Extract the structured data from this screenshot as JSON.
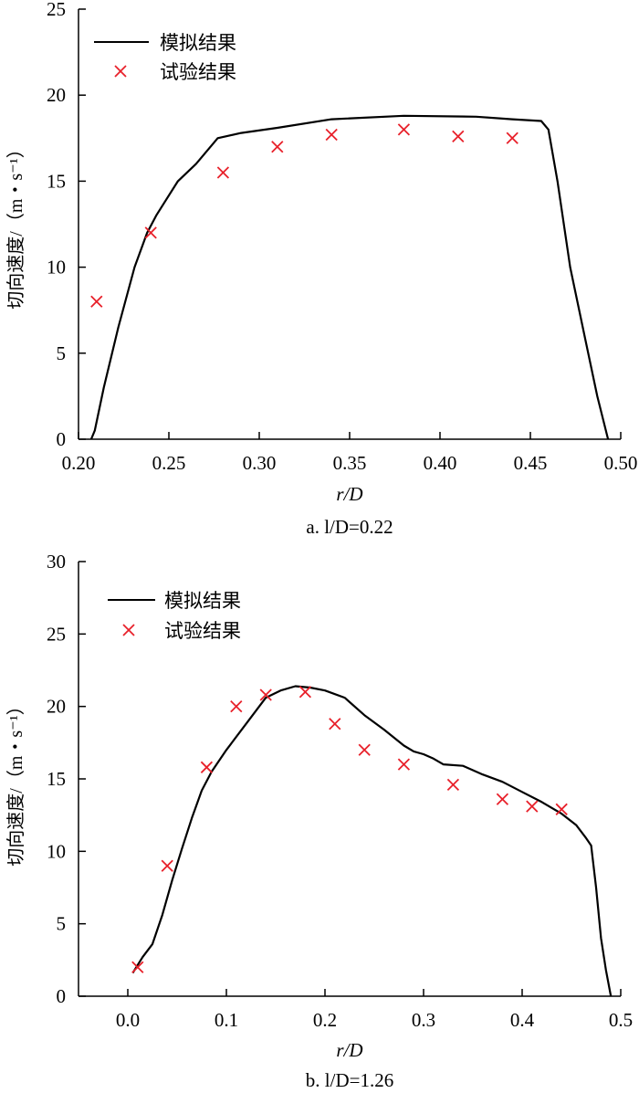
{
  "chart_data": [
    {
      "type": "line",
      "caption": "a. l/D=0.22",
      "xlabel": "r/D",
      "ylabel": "切向速度/（m・s⁻¹）",
      "xlim": [
        0.2,
        0.5
      ],
      "ylim": [
        0,
        25
      ],
      "xticks": [
        "0.20",
        "0.25",
        "0.30",
        "0.35",
        "0.40",
        "0.45",
        "0.50"
      ],
      "yticks": [
        "0",
        "5",
        "10",
        "15",
        "20",
        "25"
      ],
      "legend_position": "top-left",
      "series": [
        {
          "name": "模拟结果",
          "style": "line",
          "color": "#000000",
          "x": [
            0.207,
            0.209,
            0.214,
            0.222,
            0.231,
            0.238,
            0.243,
            0.249,
            0.255,
            0.265,
            0.277,
            0.29,
            0.31,
            0.34,
            0.38,
            0.42,
            0.44,
            0.456,
            0.46,
            0.465,
            0.472,
            0.48,
            0.487,
            0.493
          ],
          "y": [
            0.0,
            0.5,
            3.0,
            6.5,
            10.0,
            12.0,
            13.0,
            14.0,
            15.0,
            16.0,
            17.5,
            17.8,
            18.1,
            18.6,
            18.8,
            18.75,
            18.6,
            18.5,
            18.0,
            15.0,
            10.0,
            6.0,
            2.5,
            0.0
          ]
        },
        {
          "name": "试验结果",
          "style": "marker-x",
          "color": "#e8202a",
          "x": [
            0.21,
            0.24,
            0.28,
            0.31,
            0.34,
            0.38,
            0.41,
            0.44
          ],
          "y": [
            8.0,
            12.0,
            15.5,
            17.0,
            17.7,
            18.0,
            17.6,
            17.5
          ]
        }
      ]
    },
    {
      "type": "line",
      "caption": "b. l/D=1.26",
      "xlabel": "r/D",
      "ylabel": "切向速度/（m・s⁻¹）",
      "xlim": [
        -0.05,
        0.5
      ],
      "ylim": [
        0,
        30
      ],
      "xticks": [
        "0.0",
        "0.1",
        "0.2",
        "0.3",
        "0.4",
        "0.5"
      ],
      "yticks": [
        "0",
        "5",
        "10",
        "15",
        "20",
        "25",
        "30"
      ],
      "legend_position": "top-left",
      "series": [
        {
          "name": "模拟结果",
          "style": "line",
          "color": "#000000",
          "x": [
            0.005,
            0.015,
            0.025,
            0.035,
            0.045,
            0.055,
            0.065,
            0.075,
            0.085,
            0.1,
            0.12,
            0.14,
            0.155,
            0.17,
            0.185,
            0.2,
            0.22,
            0.24,
            0.26,
            0.28,
            0.29,
            0.3,
            0.31,
            0.32,
            0.34,
            0.36,
            0.38,
            0.4,
            0.42,
            0.44,
            0.455,
            0.465,
            0.47,
            0.475,
            0.48,
            0.485,
            0.49
          ],
          "y": [
            1.6,
            2.7,
            3.6,
            5.6,
            8.0,
            10.2,
            12.3,
            14.2,
            15.5,
            17.0,
            18.8,
            20.6,
            21.1,
            21.4,
            21.3,
            21.1,
            20.6,
            19.4,
            18.4,
            17.3,
            16.9,
            16.7,
            16.4,
            16.0,
            15.9,
            15.3,
            14.8,
            14.1,
            13.4,
            12.6,
            11.8,
            10.9,
            10.4,
            7.5,
            4.0,
            1.8,
            0.0
          ]
        },
        {
          "name": "试验结果",
          "style": "marker-x",
          "color": "#e8202a",
          "x": [
            0.01,
            0.04,
            0.08,
            0.11,
            0.14,
            0.18,
            0.21,
            0.24,
            0.28,
            0.33,
            0.38,
            0.41,
            0.44
          ],
          "y": [
            2.0,
            9.0,
            15.8,
            20.0,
            20.8,
            21.0,
            18.8,
            17.0,
            16.0,
            14.6,
            13.6,
            13.1,
            12.9
          ]
        }
      ]
    }
  ]
}
